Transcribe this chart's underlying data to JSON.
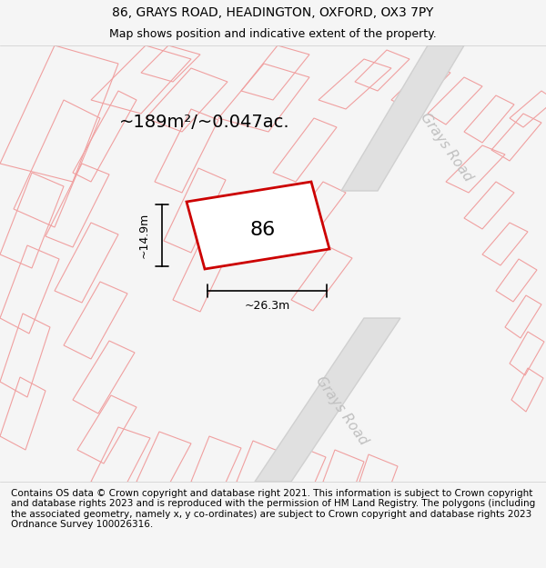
{
  "title_line1": "86, GRAYS ROAD, HEADINGTON, OXFORD, OX3 7PY",
  "title_line2": "Map shows position and indicative extent of the property.",
  "area_label": "~189m²/~0.047ac.",
  "number_label": "86",
  "dim_width": "~26.3m",
  "dim_height": "~14.9m",
  "road_label": "Grays Road",
  "footer_text": "Contains OS data © Crown copyright and database right 2021. This information is subject to Crown copyright and database rights 2023 and is reproduced with the permission of HM Land Registry. The polygons (including the associated geometry, namely x, y co-ordinates) are subject to Crown copyright and database rights 2023 Ordnance Survey 100026316.",
  "bg_color": "#f5f5f5",
  "map_bg": "#ebebeb",
  "plot_fill": "#ffffff",
  "plot_edge": "#cc0000",
  "light_lines_color": "#f0a0a0",
  "dark_lines_color": "#d0d0d0",
  "road_text_color": "#c0c0c0",
  "title_fontsize": 10,
  "subtitle_fontsize": 9,
  "footer_fontsize": 7.5
}
